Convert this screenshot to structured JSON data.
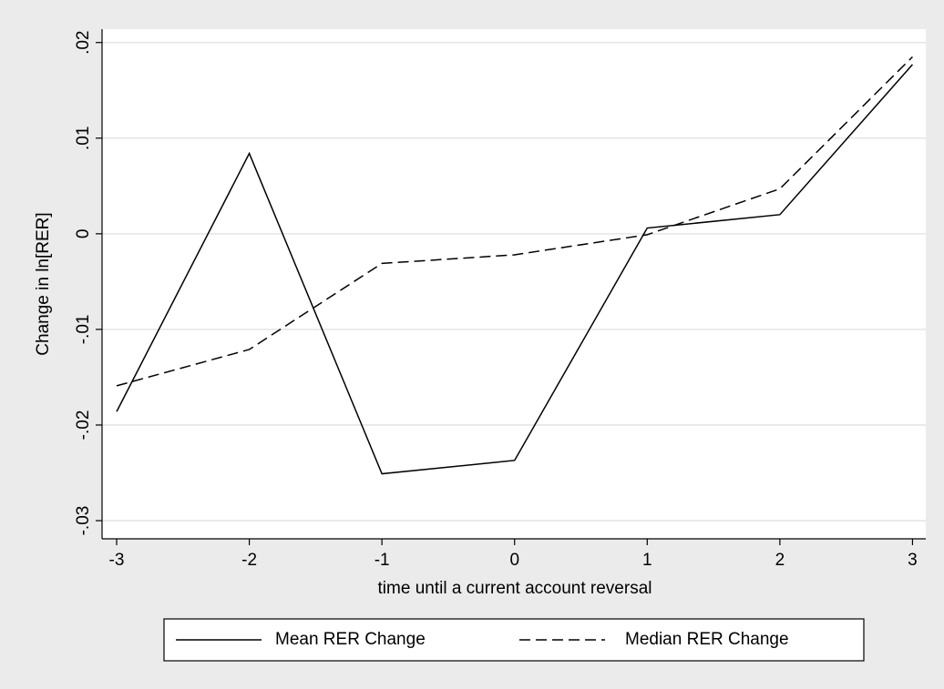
{
  "chart_data": {
    "type": "line",
    "x": [
      -3,
      -2,
      -1,
      0,
      1,
      2,
      3
    ],
    "series": [
      {
        "name": "Mean RER Change",
        "color": "#000000",
        "line_style": "solid",
        "values": [
          -0.0186,
          0.0084,
          -0.0251,
          -0.0237,
          0.0006,
          0.002,
          0.0177
        ]
      },
      {
        "name": "Median RER Change",
        "color": "#000000",
        "line_style": "dashed",
        "values": [
          -0.0159,
          -0.0121,
          -0.0031,
          -0.0022,
          -0.0001,
          0.0047,
          0.0185
        ]
      }
    ],
    "x_label": "time until a current account reversal",
    "y_label": "Change in ln[RER]",
    "xlim": [
      -3.11,
      3.1
    ],
    "xticks": [
      -3,
      -2,
      -1,
      0,
      1,
      2,
      3
    ],
    "ylim": [
      -0.0319,
      0.0214
    ],
    "yticks": [
      {
        "value": -0.03,
        "label": "-.03"
      },
      {
        "value": -0.02,
        "label": "-.02"
      },
      {
        "value": -0.01,
        "label": "-.01"
      },
      0,
      {
        "value": 0.01,
        "label": ".01"
      },
      {
        "value": 0.02,
        "label": ".02"
      }
    ],
    "grid": true,
    "legend": "bottom"
  }
}
